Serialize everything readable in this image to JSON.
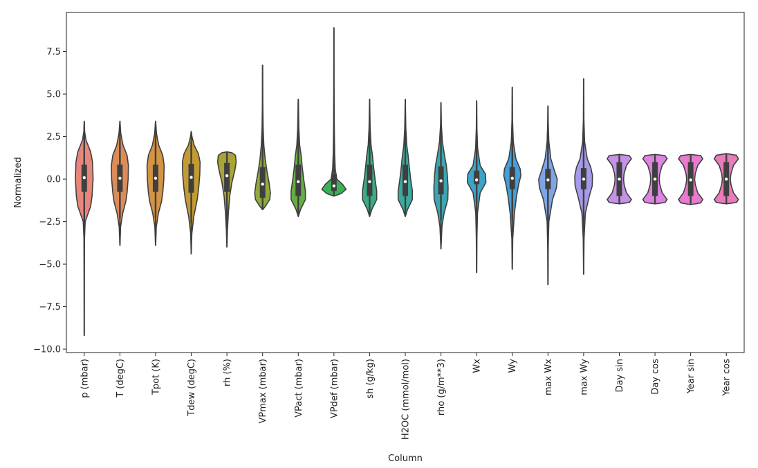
{
  "chart_data": {
    "type": "violin",
    "xlabel": "Column",
    "ylabel": "Normalized",
    "ylim": [
      -10.2,
      9.8
    ],
    "yticks": [
      -10.0,
      -7.5,
      -5.0,
      -2.5,
      0.0,
      2.5,
      5.0,
      7.5
    ],
    "ytick_labels": [
      "−10.0",
      "−7.5",
      "−5.0",
      "−2.5",
      "0.0",
      "2.5",
      "5.0",
      "7.5"
    ],
    "grid": false,
    "categories": [
      "p (mbar)",
      "T (degC)",
      "Tpot (K)",
      "Tdew (degC)",
      "rh (%)",
      "VPmax (mbar)",
      "VPact (mbar)",
      "VPdef (mbar)",
      "sh (g/kg)",
      "H2OC (mmol/mol)",
      "rho (g/m**3)",
      "Wx",
      "Wy",
      "max Wx",
      "max Wy",
      "Day sin",
      "Day cos",
      "Year sin",
      "Year cos"
    ],
    "series": [
      {
        "min": -9.2,
        "max": 3.4,
        "q1": -0.75,
        "q3": 0.85,
        "median": 0.08,
        "whisker_low": -2.5,
        "whisker_high": 2.5,
        "color": "#e8867c",
        "profile": [
          [
            -9.2,
            0.005
          ],
          [
            -6.0,
            0.01
          ],
          [
            -3.5,
            0.02
          ],
          [
            -2.5,
            0.07
          ],
          [
            -1.6,
            0.45
          ],
          [
            -1.0,
            0.55
          ],
          [
            0.0,
            0.62
          ],
          [
            1.0,
            0.58
          ],
          [
            1.6,
            0.45
          ],
          [
            2.3,
            0.12
          ],
          [
            2.8,
            0.03
          ],
          [
            3.4,
            0.005
          ]
        ]
      },
      {
        "min": -3.9,
        "max": 3.4,
        "q1": -0.75,
        "q3": 0.85,
        "median": 0.05,
        "whisker_low": -2.3,
        "whisker_high": 2.5,
        "color": "#db8c5a",
        "profile": [
          [
            -3.9,
            0.005
          ],
          [
            -2.8,
            0.05
          ],
          [
            -2.0,
            0.2
          ],
          [
            -1.3,
            0.42
          ],
          [
            -0.8,
            0.5
          ],
          [
            0.0,
            0.58
          ],
          [
            0.8,
            0.6
          ],
          [
            1.4,
            0.5
          ],
          [
            2.0,
            0.22
          ],
          [
            2.7,
            0.06
          ],
          [
            3.4,
            0.005
          ]
        ]
      },
      {
        "min": -3.9,
        "max": 3.4,
        "q1": -0.75,
        "q3": 0.85,
        "median": 0.05,
        "whisker_low": -2.3,
        "whisker_high": 2.5,
        "color": "#d39444",
        "profile": [
          [
            -3.9,
            0.005
          ],
          [
            -2.8,
            0.05
          ],
          [
            -2.0,
            0.2
          ],
          [
            -1.3,
            0.42
          ],
          [
            -0.8,
            0.5
          ],
          [
            0.0,
            0.58
          ],
          [
            0.8,
            0.6
          ],
          [
            1.4,
            0.5
          ],
          [
            2.0,
            0.22
          ],
          [
            2.7,
            0.06
          ],
          [
            3.4,
            0.005
          ]
        ]
      },
      {
        "min": -4.4,
        "max": 2.8,
        "q1": -0.8,
        "q3": 0.9,
        "median": 0.1,
        "whisker_low": -2.6,
        "whisker_high": 2.2,
        "color": "#c49a32",
        "profile": [
          [
            -4.4,
            0.005
          ],
          [
            -3.2,
            0.04
          ],
          [
            -2.2,
            0.18
          ],
          [
            -1.2,
            0.42
          ],
          [
            -0.5,
            0.52
          ],
          [
            0.3,
            0.6
          ],
          [
            1.0,
            0.62
          ],
          [
            1.5,
            0.5
          ],
          [
            2.0,
            0.2
          ],
          [
            2.5,
            0.05
          ],
          [
            2.8,
            0.005
          ]
        ]
      },
      {
        "min": -4.0,
        "max": 1.6,
        "q1": -0.75,
        "q3": 0.95,
        "median": 0.2,
        "whisker_low": -2.5,
        "whisker_high": 1.55,
        "color": "#aaa436",
        "profile": [
          [
            -4.0,
            0.005
          ],
          [
            -3.0,
            0.04
          ],
          [
            -2.0,
            0.1
          ],
          [
            -1.0,
            0.2
          ],
          [
            -0.2,
            0.35
          ],
          [
            0.5,
            0.55
          ],
          [
            1.0,
            0.65
          ],
          [
            1.4,
            0.6
          ],
          [
            1.55,
            0.35
          ],
          [
            1.6,
            0.005
          ]
        ]
      },
      {
        "min": -1.8,
        "max": 6.7,
        "q1": -1.1,
        "q3": 0.7,
        "median": -0.3,
        "whisker_low": -1.75,
        "whisker_high": 3.2,
        "color": "#8fab3c",
        "profile": [
          [
            -1.8,
            0.005
          ],
          [
            -1.6,
            0.2
          ],
          [
            -1.2,
            0.5
          ],
          [
            -0.8,
            0.55
          ],
          [
            -0.2,
            0.45
          ],
          [
            0.5,
            0.3
          ],
          [
            1.2,
            0.18
          ],
          [
            2.0,
            0.09
          ],
          [
            3.0,
            0.04
          ],
          [
            4.5,
            0.015
          ],
          [
            6.7,
            0.005
          ]
        ]
      },
      {
        "min": -2.2,
        "max": 4.7,
        "q1": -1.0,
        "q3": 0.85,
        "median": -0.15,
        "whisker_low": -2.1,
        "whisker_high": 2.7,
        "color": "#66ae43",
        "profile": [
          [
            -2.2,
            0.005
          ],
          [
            -1.8,
            0.15
          ],
          [
            -1.2,
            0.5
          ],
          [
            -0.7,
            0.5
          ],
          [
            0.0,
            0.38
          ],
          [
            0.7,
            0.28
          ],
          [
            1.4,
            0.2
          ],
          [
            2.0,
            0.1
          ],
          [
            3.0,
            0.04
          ],
          [
            4.7,
            0.005
          ]
        ]
      },
      {
        "min": -1.0,
        "max": 8.9,
        "q1": -0.7,
        "q3": 0.3,
        "median": -0.4,
        "whisker_low": -0.9,
        "whisker_high": 1.8,
        "color": "#3bb155",
        "profile": [
          [
            -1.0,
            0.005
          ],
          [
            -0.85,
            0.5
          ],
          [
            -0.6,
            0.85
          ],
          [
            -0.3,
            0.6
          ],
          [
            0.0,
            0.2
          ],
          [
            0.6,
            0.09
          ],
          [
            1.5,
            0.05
          ],
          [
            3.0,
            0.025
          ],
          [
            5.5,
            0.01
          ],
          [
            8.9,
            0.005
          ]
        ]
      },
      {
        "min": -2.2,
        "max": 4.7,
        "q1": -1.0,
        "q3": 0.85,
        "median": -0.15,
        "whisker_low": -2.1,
        "whisker_high": 2.7,
        "color": "#3aac85",
        "profile": [
          [
            -2.2,
            0.005
          ],
          [
            -1.8,
            0.15
          ],
          [
            -1.2,
            0.5
          ],
          [
            -0.7,
            0.5
          ],
          [
            0.0,
            0.38
          ],
          [
            0.7,
            0.28
          ],
          [
            1.4,
            0.2
          ],
          [
            2.0,
            0.1
          ],
          [
            3.0,
            0.04
          ],
          [
            4.7,
            0.005
          ]
        ]
      },
      {
        "min": -2.2,
        "max": 4.7,
        "q1": -1.0,
        "q3": 0.85,
        "median": -0.15,
        "whisker_low": -2.1,
        "whisker_high": 2.7,
        "color": "#3ba99e",
        "profile": [
          [
            -2.2,
            0.005
          ],
          [
            -1.8,
            0.15
          ],
          [
            -1.2,
            0.5
          ],
          [
            -0.7,
            0.5
          ],
          [
            0.0,
            0.38
          ],
          [
            0.7,
            0.28
          ],
          [
            1.4,
            0.2
          ],
          [
            2.0,
            0.1
          ],
          [
            3.0,
            0.04
          ],
          [
            4.7,
            0.005
          ]
        ]
      },
      {
        "min": -4.1,
        "max": 4.5,
        "q1": -0.9,
        "q3": 0.75,
        "median": -0.1,
        "whisker_low": -2.4,
        "whisker_high": 2.3,
        "color": "#3ca6b0",
        "profile": [
          [
            -4.1,
            0.005
          ],
          [
            -2.8,
            0.07
          ],
          [
            -2.0,
            0.22
          ],
          [
            -1.2,
            0.48
          ],
          [
            -0.5,
            0.5
          ],
          [
            0.2,
            0.45
          ],
          [
            0.8,
            0.38
          ],
          [
            1.4,
            0.25
          ],
          [
            2.2,
            0.1
          ],
          [
            3.2,
            0.03
          ],
          [
            4.5,
            0.005
          ]
        ]
      },
      {
        "min": -5.5,
        "max": 4.6,
        "q1": -0.3,
        "q3": 0.5,
        "median": -0.05,
        "whisker_low": -1.9,
        "whisker_high": 2.0,
        "color": "#3fa3c7",
        "profile": [
          [
            -5.5,
            0.005
          ],
          [
            -3.5,
            0.02
          ],
          [
            -2.0,
            0.06
          ],
          [
            -0.8,
            0.25
          ],
          [
            -0.2,
            0.65
          ],
          [
            0.3,
            0.62
          ],
          [
            0.8,
            0.25
          ],
          [
            1.8,
            0.07
          ],
          [
            3.0,
            0.02
          ],
          [
            4.6,
            0.005
          ]
        ]
      },
      {
        "min": -5.3,
        "max": 5.4,
        "q1": -0.6,
        "q3": 0.7,
        "median": 0.05,
        "whisker_low": -2.4,
        "whisker_high": 2.3,
        "color": "#459ed8",
        "profile": [
          [
            -5.3,
            0.005
          ],
          [
            -3.5,
            0.03
          ],
          [
            -2.0,
            0.15
          ],
          [
            -1.0,
            0.3
          ],
          [
            -0.3,
            0.45
          ],
          [
            0.2,
            0.6
          ],
          [
            0.6,
            0.55
          ],
          [
            1.2,
            0.25
          ],
          [
            2.2,
            0.07
          ],
          [
            3.5,
            0.02
          ],
          [
            5.4,
            0.005
          ]
        ]
      },
      {
        "min": -6.2,
        "max": 4.3,
        "q1": -0.6,
        "q3": 0.6,
        "median": -0.05,
        "whisker_low": -2.4,
        "whisker_high": 2.2,
        "color": "#7fa4e6",
        "profile": [
          [
            -6.2,
            0.005
          ],
          [
            -4.0,
            0.02
          ],
          [
            -2.5,
            0.06
          ],
          [
            -1.2,
            0.32
          ],
          [
            -0.5,
            0.6
          ],
          [
            0.0,
            0.65
          ],
          [
            0.5,
            0.45
          ],
          [
            1.2,
            0.2
          ],
          [
            2.2,
            0.06
          ],
          [
            3.3,
            0.02
          ],
          [
            4.3,
            0.005
          ]
        ]
      },
      {
        "min": -5.6,
        "max": 5.9,
        "q1": -0.6,
        "q3": 0.65,
        "median": 0.0,
        "whisker_low": -2.4,
        "whisker_high": 2.4,
        "color": "#a59bea",
        "profile": [
          [
            -5.6,
            0.005
          ],
          [
            -3.5,
            0.03
          ],
          [
            -2.0,
            0.12
          ],
          [
            -1.0,
            0.4
          ],
          [
            -0.4,
            0.6
          ],
          [
            0.2,
            0.62
          ],
          [
            0.7,
            0.5
          ],
          [
            1.2,
            0.25
          ],
          [
            2.2,
            0.07
          ],
          [
            3.5,
            0.02
          ],
          [
            5.9,
            0.005
          ]
        ]
      },
      {
        "min": -1.45,
        "max": 1.45,
        "q1": -1.0,
        "q3": 1.0,
        "median": 0.0,
        "whisker_low": -1.42,
        "whisker_high": 1.42,
        "color": "#c593e6",
        "profile": [
          [
            -1.45,
            0.005
          ],
          [
            -1.38,
            0.7
          ],
          [
            -1.2,
            0.85
          ],
          [
            -0.8,
            0.5
          ],
          [
            -0.3,
            0.33
          ],
          [
            0.0,
            0.3
          ],
          [
            0.3,
            0.33
          ],
          [
            0.8,
            0.5
          ],
          [
            1.2,
            0.85
          ],
          [
            1.38,
            0.7
          ],
          [
            1.45,
            0.005
          ]
        ]
      },
      {
        "min": -1.45,
        "max": 1.45,
        "q1": -1.0,
        "q3": 1.0,
        "median": 0.0,
        "whisker_low": -1.42,
        "whisker_high": 1.42,
        "color": "#dc84e0",
        "profile": [
          [
            -1.45,
            0.005
          ],
          [
            -1.38,
            0.7
          ],
          [
            -1.2,
            0.85
          ],
          [
            -0.8,
            0.5
          ],
          [
            -0.3,
            0.33
          ],
          [
            0.0,
            0.3
          ],
          [
            0.3,
            0.33
          ],
          [
            0.8,
            0.5
          ],
          [
            1.2,
            0.85
          ],
          [
            1.38,
            0.7
          ],
          [
            1.45,
            0.005
          ]
        ]
      },
      {
        "min": -1.5,
        "max": 1.45,
        "q1": -1.0,
        "q3": 1.0,
        "median": -0.05,
        "whisker_low": -1.45,
        "whisker_high": 1.42,
        "color": "#e87bcf",
        "profile": [
          [
            -1.5,
            0.005
          ],
          [
            -1.4,
            0.7
          ],
          [
            -1.2,
            0.85
          ],
          [
            -0.8,
            0.5
          ],
          [
            -0.3,
            0.32
          ],
          [
            0.0,
            0.28
          ],
          [
            0.3,
            0.32
          ],
          [
            0.8,
            0.5
          ],
          [
            1.2,
            0.85
          ],
          [
            1.38,
            0.7
          ],
          [
            1.45,
            0.005
          ]
        ]
      },
      {
        "min": -1.45,
        "max": 1.5,
        "q1": -1.0,
        "q3": 1.0,
        "median": 0.0,
        "whisker_low": -1.42,
        "whisker_high": 1.45,
        "color": "#ea7cba",
        "profile": [
          [
            -1.45,
            0.005
          ],
          [
            -1.38,
            0.7
          ],
          [
            -1.2,
            0.85
          ],
          [
            -0.8,
            0.5
          ],
          [
            -0.3,
            0.32
          ],
          [
            0.0,
            0.28
          ],
          [
            0.3,
            0.32
          ],
          [
            0.8,
            0.5
          ],
          [
            1.2,
            0.85
          ],
          [
            1.4,
            0.7
          ],
          [
            1.5,
            0.005
          ]
        ]
      }
    ]
  }
}
